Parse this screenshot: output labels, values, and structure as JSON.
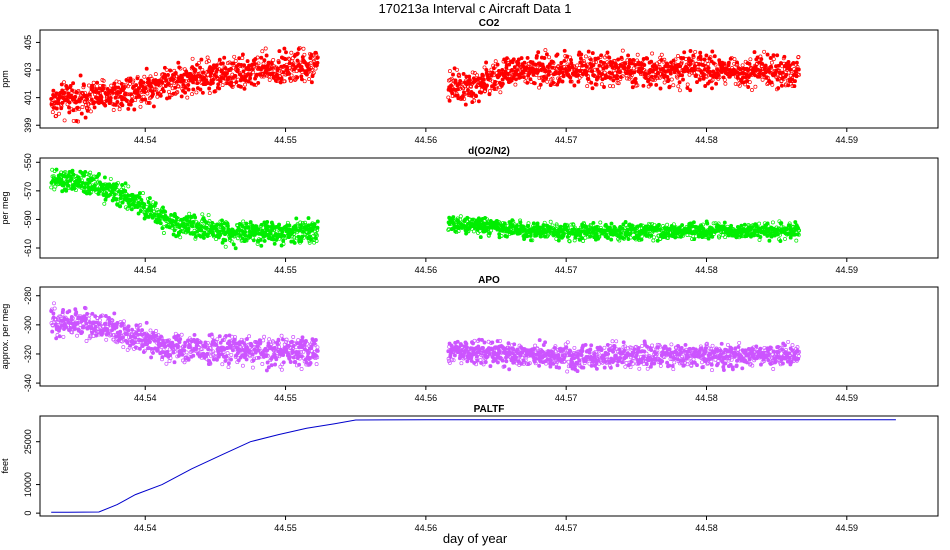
{
  "figure": {
    "title": "170213a   Interval c Aircraft Data 1",
    "xlabel": "day of year"
  },
  "chart_data": [
    {
      "type": "scatter",
      "title": "CO2",
      "ylabel": "ppm",
      "color": "#ff0000",
      "xlim": [
        44.5325,
        44.5965
      ],
      "ylim": [
        398.8,
        405.9
      ],
      "xticks": [
        44.54,
        44.55,
        44.56,
        44.57,
        44.58,
        44.59
      ],
      "xtick_labels": [
        "44.54",
        "44.55",
        "44.56",
        "44.57",
        "44.58",
        "44.59"
      ],
      "yticks": [
        399,
        401,
        403,
        405
      ],
      "ytick_labels": [
        "399",
        "401",
        "403",
        "405"
      ],
      "segments": [
        {
          "x0": 44.5333,
          "x1": 44.5523,
          "trend": [
            [
              44.5333,
              400.7
            ],
            [
              44.538,
              401.3
            ],
            [
              44.542,
              402.2
            ],
            [
              44.546,
              402.8
            ],
            [
              44.5523,
              403.3
            ]
          ],
          "spread": 0.75
        },
        {
          "x0": 44.5616,
          "x1": 44.5866,
          "trend": [
            [
              44.5616,
              402.0
            ],
            [
              44.563,
              401.6
            ],
            [
              44.5655,
              402.8
            ],
            [
              44.57,
              403.1
            ],
            [
              44.5866,
              402.9
            ]
          ],
          "spread": 0.7
        }
      ]
    },
    {
      "type": "scatter",
      "title": "d(O2/N2)",
      "ylabel": "per meg",
      "color": "#00ee00",
      "xlim": [
        44.5325,
        44.5965
      ],
      "ylim": [
        -617,
        -547
      ],
      "xticks": [
        44.54,
        44.55,
        44.56,
        44.57,
        44.58,
        44.59
      ],
      "xtick_labels": [
        "44.54",
        "44.55",
        "44.56",
        "44.57",
        "44.58",
        "44.59"
      ],
      "yticks": [
        -550,
        -570,
        -590,
        -610
      ],
      "ytick_labels": [
        "-550",
        "-570",
        "-590",
        "-610"
      ],
      "segments": [
        {
          "x0": 44.5333,
          "x1": 44.5523,
          "trend": [
            [
              44.5333,
              -563
            ],
            [
              44.5365,
              -565
            ],
            [
              44.539,
              -577
            ],
            [
              44.542,
              -593
            ],
            [
              44.546,
              -599
            ],
            [
              44.5523,
              -598
            ]
          ],
          "spread": 5
        },
        {
          "x0": 44.5616,
          "x1": 44.5866,
          "trend": [
            [
              44.5616,
              -592
            ],
            [
              44.565,
              -596
            ],
            [
              44.57,
              -599
            ],
            [
              44.5866,
              -598
            ]
          ],
          "spread": 3.5
        }
      ]
    },
    {
      "type": "scatter",
      "title": "APO",
      "ylabel": "approx. per meg",
      "color": "#cc55ff",
      "xlim": [
        44.5325,
        44.5965
      ],
      "ylim": [
        -342,
        -274
      ],
      "xticks": [
        44.54,
        44.55,
        44.56,
        44.57,
        44.58,
        44.59
      ],
      "xtick_labels": [
        "44.54",
        "44.55",
        "44.56",
        "44.57",
        "44.58",
        "44.59"
      ],
      "yticks": [
        -280,
        -300,
        -320,
        -340
      ],
      "ytick_labels": [
        "-280",
        "-300",
        "-320",
        "-340"
      ],
      "segments": [
        {
          "x0": 44.5333,
          "x1": 44.5523,
          "trend": [
            [
              44.5333,
              -297
            ],
            [
              44.5365,
              -300
            ],
            [
              44.539,
              -308
            ],
            [
              44.542,
              -316
            ],
            [
              44.5523,
              -319
            ]
          ],
          "spread": 6
        },
        {
          "x0": 44.5616,
          "x1": 44.5866,
          "trend": [
            [
              44.5616,
              -318
            ],
            [
              44.57,
              -322
            ],
            [
              44.5866,
              -321
            ]
          ],
          "spread": 5
        }
      ]
    },
    {
      "type": "line",
      "title": "PALTF",
      "ylabel": "feet",
      "color": "#0000cc",
      "xlim": [
        44.5325,
        44.5965
      ],
      "ylim": [
        -1000,
        34000
      ],
      "xticks": [
        44.54,
        44.55,
        44.56,
        44.57,
        44.58,
        44.59
      ],
      "xtick_labels": [
        "44.54",
        "44.55",
        "44.56",
        "44.57",
        "44.58",
        "44.59"
      ],
      "yticks": [
        0,
        10000,
        25000
      ],
      "ytick_labels": [
        "0",
        "10000",
        "25000"
      ],
      "x": [
        44.5333,
        44.5345,
        44.5367,
        44.538,
        44.5393,
        44.5412,
        44.5433,
        44.5455,
        44.5475,
        44.5495,
        44.5515,
        44.5535,
        44.555,
        44.56,
        44.57,
        44.58,
        44.5935
      ],
      "y": [
        300,
        300,
        400,
        3000,
        6500,
        10000,
        15500,
        20500,
        25000,
        27500,
        29700,
        31300,
        32600,
        32700,
        32700,
        32700,
        32700
      ]
    }
  ]
}
